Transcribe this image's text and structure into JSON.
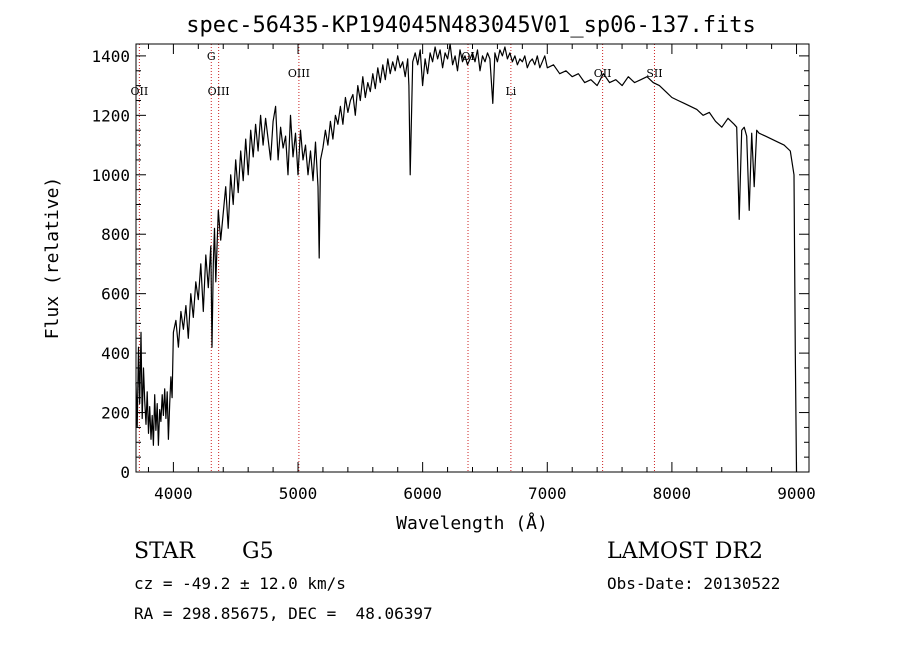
{
  "chart_data": {
    "type": "line",
    "title": "spec-56435-KP194045N483045V01_sp06-137.fits",
    "xlabel": "Wavelength (Å)",
    "ylabel": "Flux (relative)",
    "xlim": [
      3700,
      9100
    ],
    "ylim": [
      0,
      1440
    ],
    "x_ticks": [
      4000,
      5000,
      6000,
      7000,
      8000,
      9000
    ],
    "y_ticks": [
      0,
      200,
      400,
      600,
      800,
      1000,
      1200,
      1400
    ],
    "grid": false,
    "series": [
      {
        "x": [
          3700,
          3710,
          3720,
          3730,
          3740,
          3750,
          3760,
          3770,
          3780,
          3790,
          3800,
          3810,
          3820,
          3830,
          3840,
          3850,
          3860,
          3870,
          3880,
          3890,
          3900,
          3910,
          3920,
          3930,
          3940,
          3950,
          3960,
          3970,
          3980,
          3990,
          4000,
          4020,
          4040,
          4060,
          4080,
          4100,
          4120,
          4140,
          4160,
          4180,
          4200,
          4220,
          4240,
          4260,
          4280,
          4300,
          4310,
          4320,
          4330,
          4340,
          4360,
          4380,
          4400,
          4420,
          4440,
          4460,
          4480,
          4500,
          4520,
          4540,
          4560,
          4580,
          4600,
          4620,
          4640,
          4660,
          4680,
          4700,
          4720,
          4740,
          4760,
          4780,
          4800,
          4820,
          4840,
          4860,
          4880,
          4900,
          4920,
          4940,
          4960,
          4980,
          5000,
          5020,
          5040,
          5060,
          5080,
          5100,
          5120,
          5140,
          5160,
          5170,
          5180,
          5200,
          5220,
          5240,
          5260,
          5280,
          5300,
          5320,
          5340,
          5360,
          5380,
          5400,
          5420,
          5440,
          5460,
          5480,
          5500,
          5520,
          5540,
          5560,
          5580,
          5600,
          5620,
          5640,
          5660,
          5680,
          5700,
          5720,
          5740,
          5760,
          5780,
          5800,
          5820,
          5840,
          5860,
          5880,
          5890,
          5900,
          5920,
          5940,
          5960,
          5980,
          6000,
          6020,
          6040,
          6060,
          6080,
          6100,
          6120,
          6140,
          6160,
          6180,
          6200,
          6220,
          6240,
          6260,
          6280,
          6300,
          6320,
          6340,
          6360,
          6380,
          6400,
          6420,
          6440,
          6460,
          6480,
          6500,
          6520,
          6540,
          6563,
          6580,
          6600,
          6620,
          6640,
          6660,
          6680,
          6700,
          6720,
          6740,
          6760,
          6780,
          6800,
          6820,
          6840,
          6860,
          6880,
          6900,
          6920,
          6940,
          6960,
          6980,
          7000,
          7050,
          7100,
          7150,
          7200,
          7250,
          7300,
          7350,
          7400,
          7450,
          7500,
          7550,
          7600,
          7650,
          7700,
          7750,
          7800,
          7850,
          7900,
          7950,
          8000,
          8050,
          8100,
          8150,
          8200,
          8250,
          8300,
          8350,
          8400,
          8450,
          8500,
          8520,
          8540,
          8560,
          8580,
          8600,
          8620,
          8640,
          8660,
          8680,
          8700,
          8750,
          8800,
          8850,
          8900,
          8950,
          8980,
          8990,
          9000
        ],
        "y": [
          300,
          150,
          420,
          230,
          470,
          180,
          350,
          240,
          160,
          270,
          130,
          220,
          110,
          190,
          90,
          260,
          140,
          230,
          90,
          210,
          170,
          260,
          190,
          280,
          180,
          270,
          110,
          230,
          320,
          250,
          470,
          510,
          420,
          540,
          480,
          560,
          450,
          600,
          520,
          640,
          580,
          700,
          540,
          730,
          620,
          760,
          420,
          700,
          820,
          640,
          880,
          780,
          870,
          960,
          820,
          1000,
          900,
          1050,
          940,
          1080,
          980,
          1120,
          1000,
          1150,
          1060,
          1170,
          1080,
          1200,
          1100,
          1190,
          1120,
          1050,
          1180,
          1230,
          1050,
          1160,
          1090,
          1130,
          1000,
          1200,
          1060,
          1140,
          1000,
          1150,
          1050,
          1100,
          1000,
          1080,
          980,
          1110,
          960,
          720,
          1050,
          1090,
          1150,
          1100,
          1180,
          1120,
          1200,
          1170,
          1230,
          1170,
          1260,
          1210,
          1250,
          1270,
          1200,
          1300,
          1250,
          1330,
          1260,
          1310,
          1280,
          1340,
          1290,
          1360,
          1310,
          1370,
          1320,
          1390,
          1340,
          1380,
          1350,
          1400,
          1360,
          1380,
          1330,
          1390,
          1300,
          1000,
          1380,
          1410,
          1370,
          1420,
          1300,
          1390,
          1340,
          1410,
          1380,
          1430,
          1390,
          1420,
          1360,
          1410,
          1390,
          1440,
          1370,
          1400,
          1350,
          1420,
          1380,
          1400,
          1370,
          1390,
          1410,
          1380,
          1420,
          1350,
          1400,
          1380,
          1410,
          1390,
          1240,
          1410,
          1380,
          1420,
          1400,
          1430,
          1390,
          1410,
          1380,
          1400,
          1370,
          1390,
          1380,
          1400,
          1360,
          1380,
          1390,
          1370,
          1400,
          1360,
          1380,
          1400,
          1360,
          1370,
          1340,
          1350,
          1330,
          1340,
          1310,
          1320,
          1300,
          1340,
          1310,
          1320,
          1300,
          1330,
          1310,
          1320,
          1330,
          1310,
          1300,
          1280,
          1260,
          1250,
          1240,
          1230,
          1220,
          1200,
          1210,
          1180,
          1160,
          1190,
          1170,
          1160,
          850,
          1150,
          1160,
          1130,
          880,
          1140,
          960,
          1150,
          1140,
          1130,
          1120,
          1110,
          1100,
          1080,
          1000,
          400,
          0
        ]
      }
    ],
    "lines": [
      {
        "label": "OII",
        "x": 3727
      },
      {
        "label": "G",
        "x": 4304
      },
      {
        "label": "OIII",
        "x": 4363
      },
      {
        "label": "OIII",
        "x": 5007
      },
      {
        "label": "OI",
        "x": 6364
      },
      {
        "label": "Li",
        "x": 6708
      },
      {
        "label": "OII",
        "x": 7444
      },
      {
        "label": "SII",
        "x": 7860
      }
    ]
  },
  "info": {
    "class": "STAR",
    "subclass": "G5",
    "survey": "LAMOST DR2",
    "cz": "cz = -49.2 ± 12.0 km/s",
    "obs_date": "Obs-Date: 20130522",
    "coords": "RA = 298.85675, DEC =  48.06397"
  },
  "colors": {
    "spectrum": "#000000",
    "line_markers": "#cc2222",
    "axes": "#000000"
  }
}
